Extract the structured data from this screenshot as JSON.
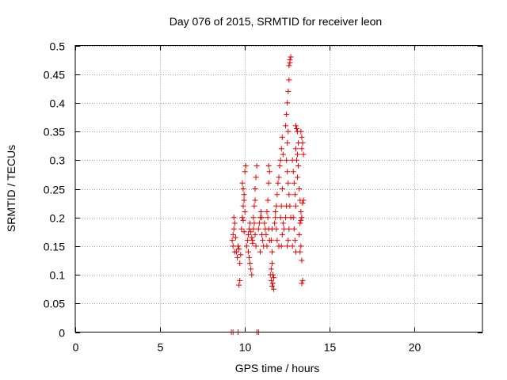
{
  "chart_data": {
    "type": "scatter",
    "title": "Day 076 of 2015, SRMTID for receiver leon",
    "xlabel": "GPS time / hours",
    "ylabel": "SRMTID / TECUs",
    "xlim": [
      0,
      24
    ],
    "ylim": [
      0,
      0.5
    ],
    "x_ticks": [
      0,
      5,
      10,
      15,
      20
    ],
    "x_tick_labels": [
      "0",
      "5",
      "10",
      "15",
      "20"
    ],
    "y_ticks": [
      0,
      0.05,
      0.1,
      0.15,
      0.2,
      0.25,
      0.3,
      0.35,
      0.4,
      0.45,
      0.5
    ],
    "y_tick_labels": [
      "0",
      "0.05",
      "0.1",
      "0.15",
      "0.2",
      "0.25",
      "0.3",
      "0.35",
      "0.4",
      "0.45",
      "0.5"
    ],
    "grid": true,
    "marker_color": "#dd0000",
    "marker": "plus",
    "series": [
      {
        "name": "SRMTID",
        "points": [
          [
            9.2,
            0.0
          ],
          [
            9.3,
            0.0
          ],
          [
            9.6,
            0.0
          ],
          [
            10.7,
            0.0
          ],
          [
            10.8,
            0.0
          ],
          [
            9.25,
            0.16
          ],
          [
            9.3,
            0.17
          ],
          [
            9.35,
            0.18
          ],
          [
            9.4,
            0.19
          ],
          [
            9.3,
            0.15
          ],
          [
            9.35,
            0.2
          ],
          [
            9.4,
            0.14
          ],
          [
            9.45,
            0.165
          ],
          [
            9.5,
            0.14
          ],
          [
            9.55,
            0.13
          ],
          [
            9.6,
            0.15
          ],
          [
            9.65,
            0.145
          ],
          [
            9.7,
            0.12
          ],
          [
            9.75,
            0.135
          ],
          [
            9.7,
            0.09
          ],
          [
            9.65,
            0.082
          ],
          [
            9.8,
            0.18
          ],
          [
            9.85,
            0.2
          ],
          [
            9.9,
            0.22
          ],
          [
            9.95,
            0.23
          ],
          [
            9.9,
            0.25
          ],
          [
            9.85,
            0.26
          ],
          [
            9.95,
            0.24
          ],
          [
            10.0,
            0.21
          ],
          [
            10.0,
            0.28
          ],
          [
            10.05,
            0.29
          ],
          [
            9.9,
            0.195
          ],
          [
            9.95,
            0.175
          ],
          [
            10.1,
            0.15
          ],
          [
            10.15,
            0.16
          ],
          [
            10.2,
            0.17
          ],
          [
            10.25,
            0.18
          ],
          [
            10.3,
            0.19
          ],
          [
            10.35,
            0.175
          ],
          [
            10.4,
            0.165
          ],
          [
            10.45,
            0.155
          ],
          [
            10.2,
            0.14
          ],
          [
            10.25,
            0.13
          ],
          [
            10.3,
            0.12
          ],
          [
            10.35,
            0.11
          ],
          [
            10.4,
            0.1
          ],
          [
            10.5,
            0.2
          ],
          [
            10.55,
            0.22
          ],
          [
            10.6,
            0.25
          ],
          [
            10.65,
            0.27
          ],
          [
            10.7,
            0.29
          ],
          [
            10.6,
            0.23
          ],
          [
            10.55,
            0.19
          ],
          [
            10.5,
            0.18
          ],
          [
            10.45,
            0.16
          ],
          [
            10.6,
            0.17
          ],
          [
            10.65,
            0.15
          ],
          [
            10.8,
            0.18
          ],
          [
            10.85,
            0.19
          ],
          [
            10.9,
            0.2
          ],
          [
            10.95,
            0.21
          ],
          [
            11.0,
            0.17
          ],
          [
            11.05,
            0.16
          ],
          [
            11.1,
            0.15
          ],
          [
            10.9,
            0.14
          ],
          [
            11.0,
            0.2
          ],
          [
            11.15,
            0.19
          ],
          [
            11.2,
            0.18
          ],
          [
            11.25,
            0.17
          ],
          [
            11.3,
            0.21
          ],
          [
            11.35,
            0.23
          ],
          [
            11.4,
            0.26
          ],
          [
            11.45,
            0.28
          ],
          [
            11.4,
            0.29
          ],
          [
            11.35,
            0.2
          ],
          [
            11.4,
            0.18
          ],
          [
            11.45,
            0.16
          ],
          [
            11.3,
            0.15
          ],
          [
            11.5,
            0.1
          ],
          [
            11.55,
            0.09
          ],
          [
            11.6,
            0.08
          ],
          [
            11.65,
            0.085
          ],
          [
            11.7,
            0.095
          ],
          [
            11.55,
            0.11
          ],
          [
            11.6,
            0.12
          ],
          [
            11.65,
            0.1
          ],
          [
            11.7,
            0.075
          ],
          [
            11.6,
            0.14
          ],
          [
            11.55,
            0.16
          ],
          [
            11.6,
            0.18
          ],
          [
            11.75,
            0.19
          ],
          [
            11.8,
            0.2
          ],
          [
            11.85,
            0.22
          ],
          [
            11.9,
            0.24
          ],
          [
            11.95,
            0.26
          ],
          [
            11.8,
            0.21
          ],
          [
            11.85,
            0.18
          ],
          [
            11.9,
            0.16
          ],
          [
            12.0,
            0.15
          ],
          [
            12.0,
            0.27
          ],
          [
            12.05,
            0.29
          ],
          [
            12.1,
            0.3
          ],
          [
            12.15,
            0.32
          ],
          [
            12.2,
            0.34
          ],
          [
            12.25,
            0.31
          ],
          [
            12.2,
            0.25
          ],
          [
            12.15,
            0.22
          ],
          [
            12.1,
            0.2
          ],
          [
            12.25,
            0.19
          ],
          [
            12.3,
            0.18
          ],
          [
            12.2,
            0.17
          ],
          [
            12.15,
            0.15
          ],
          [
            12.4,
            0.36
          ],
          [
            12.45,
            0.38
          ],
          [
            12.5,
            0.4
          ],
          [
            12.55,
            0.42
          ],
          [
            12.6,
            0.44
          ],
          [
            12.6,
            0.465
          ],
          [
            12.65,
            0.475
          ],
          [
            12.7,
            0.48
          ],
          [
            12.65,
            0.47
          ],
          [
            12.55,
            0.35
          ],
          [
            12.5,
            0.33
          ],
          [
            12.45,
            0.3
          ],
          [
            12.5,
            0.28
          ],
          [
            12.55,
            0.26
          ],
          [
            12.6,
            0.24
          ],
          [
            12.65,
            0.22
          ],
          [
            12.7,
            0.2
          ],
          [
            12.6,
            0.18
          ],
          [
            12.55,
            0.16
          ],
          [
            12.5,
            0.15
          ],
          [
            12.4,
            0.2
          ],
          [
            12.45,
            0.22
          ],
          [
            12.8,
            0.3
          ],
          [
            12.85,
            0.28
          ],
          [
            12.9,
            0.26
          ],
          [
            12.95,
            0.24
          ],
          [
            13.0,
            0.22
          ],
          [
            12.85,
            0.2
          ],
          [
            12.9,
            0.18
          ],
          [
            12.95,
            0.16
          ],
          [
            13.0,
            0.14
          ],
          [
            12.8,
            0.15
          ],
          [
            13.0,
            0.36
          ],
          [
            13.05,
            0.355
          ],
          [
            13.1,
            0.35
          ],
          [
            13.15,
            0.33
          ],
          [
            13.1,
            0.31
          ],
          [
            13.05,
            0.3
          ],
          [
            13.0,
            0.32
          ],
          [
            13.15,
            0.29
          ],
          [
            13.1,
            0.27
          ],
          [
            13.2,
            0.25
          ],
          [
            13.25,
            0.23
          ],
          [
            13.3,
            0.21
          ],
          [
            13.35,
            0.2
          ],
          [
            13.3,
            0.195
          ],
          [
            13.25,
            0.19
          ],
          [
            13.2,
            0.17
          ],
          [
            13.3,
            0.15
          ],
          [
            13.25,
            0.14
          ],
          [
            13.35,
            0.125
          ],
          [
            13.3,
            0.35
          ],
          [
            13.35,
            0.34
          ],
          [
            13.4,
            0.33
          ],
          [
            13.35,
            0.32
          ],
          [
            13.4,
            0.225
          ],
          [
            13.45,
            0.23
          ],
          [
            13.4,
            0.09
          ],
          [
            13.35,
            0.085
          ],
          [
            13.45,
            0.31
          ]
        ]
      }
    ]
  }
}
